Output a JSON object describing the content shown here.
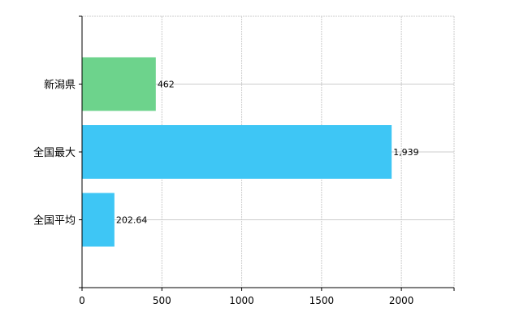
{
  "chart_data": {
    "type": "bar",
    "orientation": "horizontal",
    "categories": [
      "新潟県",
      "全国最大",
      "全国平均"
    ],
    "values": [
      462,
      1939,
      202.64
    ],
    "value_labels": [
      "462",
      "1,939",
      "202.64"
    ],
    "colors": [
      "#6dd38c",
      "#3ec6f5",
      "#3ec6f5"
    ],
    "xlim": [
      0,
      2330
    ],
    "xticks": [
      0,
      500,
      1000,
      1500,
      2000
    ],
    "xtick_labels": [
      "0",
      "500",
      "1000",
      "1500",
      "2000"
    ],
    "grid": true,
    "legend": "none"
  }
}
